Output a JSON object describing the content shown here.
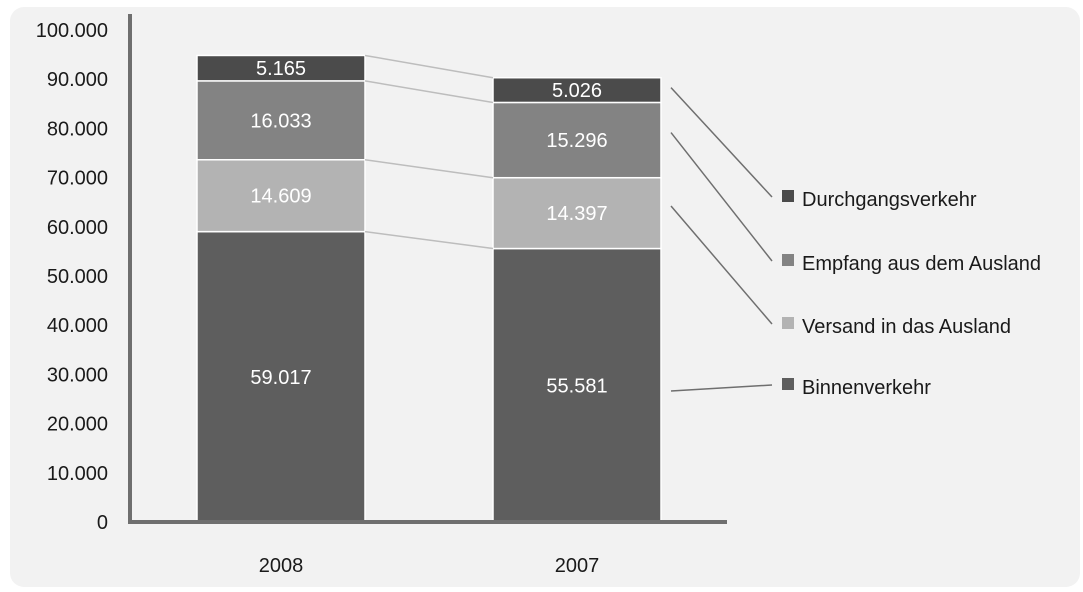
{
  "chart_data": {
    "type": "bar",
    "stacked": true,
    "categories": [
      "2008",
      "2007"
    ],
    "series": [
      {
        "name": "Binnenverkehr",
        "values": [
          59017,
          55581
        ],
        "labels": [
          "59.017",
          "55.581"
        ],
        "color": "#5e5e5e"
      },
      {
        "name": "Versand in das Ausland",
        "values": [
          14609,
          14397
        ],
        "labels": [
          "14.609",
          "14.397"
        ],
        "color": "#b3b3b3"
      },
      {
        "name": "Empfang aus dem Ausland",
        "values": [
          16033,
          15296
        ],
        "labels": [
          "16.033",
          "15.296"
        ],
        "color": "#838383"
      },
      {
        "name": "Durchgangsverkehr",
        "values": [
          5165,
          5026
        ],
        "labels": [
          "5.165",
          "5.026"
        ],
        "color": "#4b4b4b"
      }
    ],
    "ylim": [
      0,
      100000
    ],
    "yticks": [
      "0",
      "10.000",
      "20.000",
      "30.000",
      "40.000",
      "50.000",
      "60.000",
      "70.000",
      "80.000",
      "90.000",
      "100.000"
    ],
    "grid": false,
    "legend_position": "right"
  }
}
